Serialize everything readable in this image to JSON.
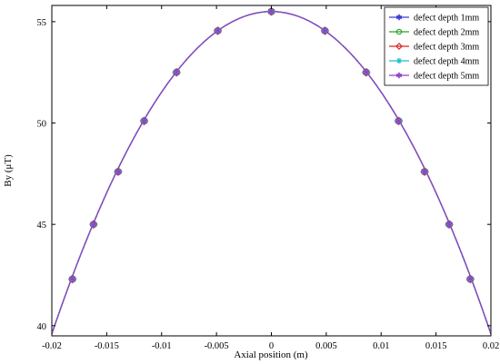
{
  "chart_data": {
    "type": "line",
    "title": "",
    "xlabel": "Axial position (m)",
    "ylabel": "By (μT)",
    "xlim": [
      -0.02,
      0.02
    ],
    "ylim": [
      39.5,
      55.8
    ],
    "xticks": [
      -0.02,
      -0.015,
      -0.01,
      -0.005,
      0,
      0.005,
      0.01,
      0.015,
      0.02
    ],
    "xtick_labels": [
      "-0.02",
      "-0.015",
      "-0.01",
      "-0.005",
      "0",
      "0.005",
      "0.01",
      "0.015",
      "0.02"
    ],
    "yticks": [
      40,
      45,
      50,
      55
    ],
    "ytick_labels": [
      "40",
      "45",
      "50",
      "55"
    ],
    "grid": false,
    "legend_position": "top-right",
    "curve": {
      "model": "parabola",
      "peak_x": 0,
      "peak_y": 55.5,
      "curvature": 39750
    },
    "series": [
      {
        "name": "defect depth 1mm",
        "color": "#3b3bd9",
        "marker": "star",
        "x": [
          -0.01812,
          -0.0162,
          -0.01396,
          -0.01159,
          -0.00864,
          -0.00488,
          0,
          0.00488,
          0.00864,
          0.01159,
          0.01396,
          0.0162,
          0.01812
        ],
        "y": [
          42.3,
          45.0,
          47.6,
          50.1,
          52.5,
          54.55,
          55.5,
          54.55,
          52.5,
          50.1,
          47.6,
          45.0,
          42.3
        ]
      },
      {
        "name": "defect depth 2mm",
        "color": "#2ca02c",
        "marker": "circle",
        "x": [
          -0.01812,
          -0.0162,
          -0.01396,
          -0.01159,
          -0.00864,
          -0.00488,
          0,
          0.00488,
          0.00864,
          0.01159,
          0.01396,
          0.0162,
          0.01812
        ],
        "y": [
          42.3,
          45.0,
          47.6,
          50.1,
          52.5,
          54.55,
          55.5,
          54.55,
          52.5,
          50.1,
          47.6,
          45.0,
          42.3
        ]
      },
      {
        "name": "defect depth 3mm",
        "color": "#d62728",
        "marker": "diamond",
        "x": [
          -0.01812,
          -0.0162,
          -0.01396,
          -0.01159,
          -0.00864,
          -0.00488,
          0,
          0.00488,
          0.00864,
          0.01159,
          0.01396,
          0.0162,
          0.01812
        ],
        "y": [
          42.3,
          45.0,
          47.6,
          50.1,
          52.5,
          54.55,
          55.5,
          54.55,
          52.5,
          50.1,
          47.6,
          45.0,
          42.3
        ]
      },
      {
        "name": "defect depth 4mm",
        "color": "#17becf",
        "marker": "asterisk",
        "x": [
          -0.01812,
          -0.0162,
          -0.01396,
          -0.01159,
          -0.00864,
          -0.00488,
          0,
          0.00488,
          0.00864,
          0.01159,
          0.01396,
          0.0162,
          0.01812
        ],
        "y": [
          42.3,
          45.0,
          47.6,
          50.1,
          52.5,
          54.55,
          55.5,
          54.55,
          52.5,
          50.1,
          47.6,
          45.0,
          42.3
        ]
      },
      {
        "name": "defect depth 5mm",
        "color": "#8e44c9",
        "marker": "star",
        "x": [
          -0.01812,
          -0.0162,
          -0.01396,
          -0.01159,
          -0.00864,
          -0.00488,
          0,
          0.00488,
          0.00864,
          0.01159,
          0.01396,
          0.0162,
          0.01812
        ],
        "y": [
          42.3,
          45.0,
          47.6,
          50.1,
          52.5,
          54.55,
          55.5,
          54.55,
          52.5,
          50.1,
          47.6,
          45.0,
          42.3
        ]
      }
    ]
  }
}
